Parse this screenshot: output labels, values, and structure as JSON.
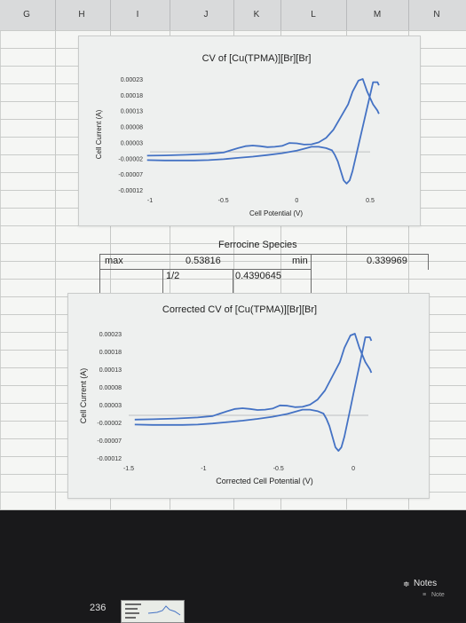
{
  "spreadsheet": {
    "columns": [
      "G",
      "H",
      "I",
      "J",
      "K",
      "L",
      "M",
      "N"
    ],
    "cells": {
      "ferrocine_label": "Ferrocine Species",
      "max_label": "max",
      "max_value": "0.53816",
      "min_label": "min",
      "min_value": "0.339969",
      "half_label": "1/2",
      "half_value": "0.4390645"
    }
  },
  "chart_data": [
    {
      "type": "line",
      "title": "CV of [Cu(TPMA)][Br][Br]",
      "xlabel": "Cell Potential (V)",
      "ylabel": "Cell Current (A)",
      "xlim": [
        -1,
        0.5
      ],
      "ylim": [
        -0.00012,
        0.00023
      ],
      "x_ticks": [
        "-1",
        "-0.5",
        "0",
        "0.5"
      ],
      "y_ticks": [
        "0.00023",
        "0.00018",
        "0.00013",
        "0.00008",
        "0.00003",
        "-0.00002",
        "-0.00007",
        "-0.00012"
      ],
      "grid": false,
      "color": "#4472c4",
      "series": [
        {
          "x": [
            -1.02,
            -0.9,
            -0.75,
            -0.6,
            -0.5,
            -0.45,
            -0.4,
            -0.35,
            -0.3,
            -0.25,
            -0.2,
            -0.15,
            -0.1,
            -0.05,
            0.0,
            0.05,
            0.1,
            0.15,
            0.2,
            0.25,
            0.3,
            0.35,
            0.38,
            0.42,
            0.45,
            0.48,
            0.52,
            0.55,
            0.56
          ],
          "y": [
            -1.2e-05,
            -1.1e-05,
            -9e-06,
            -6e-06,
            -2e-06,
            5e-06,
            1.2e-05,
            1.8e-05,
            2e-05,
            1.8e-05,
            1.5e-05,
            1.6e-05,
            1.9e-05,
            2.8e-05,
            2.7e-05,
            2.3e-05,
            2.4e-05,
            3e-05,
            4.4e-05,
            7e-05,
            0.00011,
            0.00015,
            0.00019,
            0.000225,
            0.00023,
            0.00019,
            0.00015,
            0.00013,
            0.00012
          ]
        },
        {
          "x": [
            0.56,
            0.55,
            0.52,
            0.5,
            0.48,
            0.46,
            0.44,
            0.42,
            0.4,
            0.38,
            0.36,
            0.34,
            0.32,
            0.3,
            0.28,
            0.26,
            0.24,
            0.2,
            0.15,
            0.1,
            0.05,
            0.0,
            -0.1,
            -0.2,
            -0.3,
            -0.4,
            -0.5,
            -0.6,
            -0.7,
            -0.8,
            -0.9,
            -1.02
          ],
          "y": [
            0.00021,
            0.00022,
            0.00022,
            0.00018,
            0.00014,
            0.0001,
            6e-05,
            2e-05,
            -2e-05,
            -6e-05,
            -9e-05,
            -0.0001,
            -9e-05,
            -6e-05,
            -3e-05,
            -1e-05,
            5e-06,
            1.2e-05,
            1.6e-05,
            1.6e-05,
            1e-05,
            4e-06,
            -4e-06,
            -1e-05,
            -1.5e-05,
            -1.9e-05,
            -2.3e-05,
            -2.6e-05,
            -2.7e-05,
            -2.7e-05,
            -2.7e-05,
            -2.6e-05
          ]
        }
      ]
    },
    {
      "type": "line",
      "title": "Corrected CV of [Cu(TPMA)][Br][Br]",
      "xlabel": "Corrected Cell Potential (V)",
      "ylabel": "Cell Current (A)",
      "xlim": [
        -1.5,
        0.1
      ],
      "ylim": [
        -0.00012,
        0.00023
      ],
      "x_ticks": [
        "-1.5",
        "-1",
        "-0.5",
        "0"
      ],
      "y_ticks": [
        "0.00023",
        "0.00018",
        "0.00013",
        "0.00008",
        "0.00003",
        "-0.00002",
        "-0.00007",
        "-0.00012"
      ],
      "grid": false,
      "color": "#4472c4",
      "series": [
        {
          "x": [
            -1.46,
            -1.34,
            -1.19,
            -1.04,
            -0.94,
            -0.89,
            -0.84,
            -0.79,
            -0.74,
            -0.69,
            -0.64,
            -0.59,
            -0.54,
            -0.49,
            -0.44,
            -0.39,
            -0.34,
            -0.29,
            -0.24,
            -0.19,
            -0.14,
            -0.09,
            -0.06,
            -0.02,
            0.01,
            0.04,
            0.08,
            0.11,
            0.12
          ],
          "y": [
            -1.2e-05,
            -1.1e-05,
            -9e-06,
            -6e-06,
            -2e-06,
            5e-06,
            1.2e-05,
            1.8e-05,
            2e-05,
            1.8e-05,
            1.5e-05,
            1.6e-05,
            1.9e-05,
            2.8e-05,
            2.7e-05,
            2.3e-05,
            2.4e-05,
            3e-05,
            4.4e-05,
            7e-05,
            0.00011,
            0.00015,
            0.00019,
            0.000225,
            0.00023,
            0.00019,
            0.00015,
            0.00013,
            0.00012
          ]
        },
        {
          "x": [
            0.12,
            0.11,
            0.08,
            0.06,
            0.04,
            0.02,
            0.0,
            -0.02,
            -0.04,
            -0.06,
            -0.08,
            -0.1,
            -0.12,
            -0.14,
            -0.16,
            -0.18,
            -0.2,
            -0.24,
            -0.29,
            -0.34,
            -0.39,
            -0.44,
            -0.54,
            -0.64,
            -0.74,
            -0.84,
            -0.94,
            -1.04,
            -1.14,
            -1.24,
            -1.34,
            -1.46
          ],
          "y": [
            0.00021,
            0.00022,
            0.00022,
            0.00018,
            0.00014,
            0.0001,
            6e-05,
            2e-05,
            -2e-05,
            -6e-05,
            -9e-05,
            -0.0001,
            -9e-05,
            -6e-05,
            -3e-05,
            -1e-05,
            5e-06,
            1.2e-05,
            1.6e-05,
            1.6e-05,
            1e-05,
            4e-06,
            -4e-06,
            -1e-05,
            -1.5e-05,
            -1.9e-05,
            -2.3e-05,
            -2.6e-05,
            -2.7e-05,
            -2.7e-05,
            -2.7e-05,
            -2.6e-05
          ]
        }
      ]
    }
  ],
  "dock": {
    "notes_label": "Notes",
    "notes_sub_label": "Note",
    "sheet_number": "236"
  }
}
